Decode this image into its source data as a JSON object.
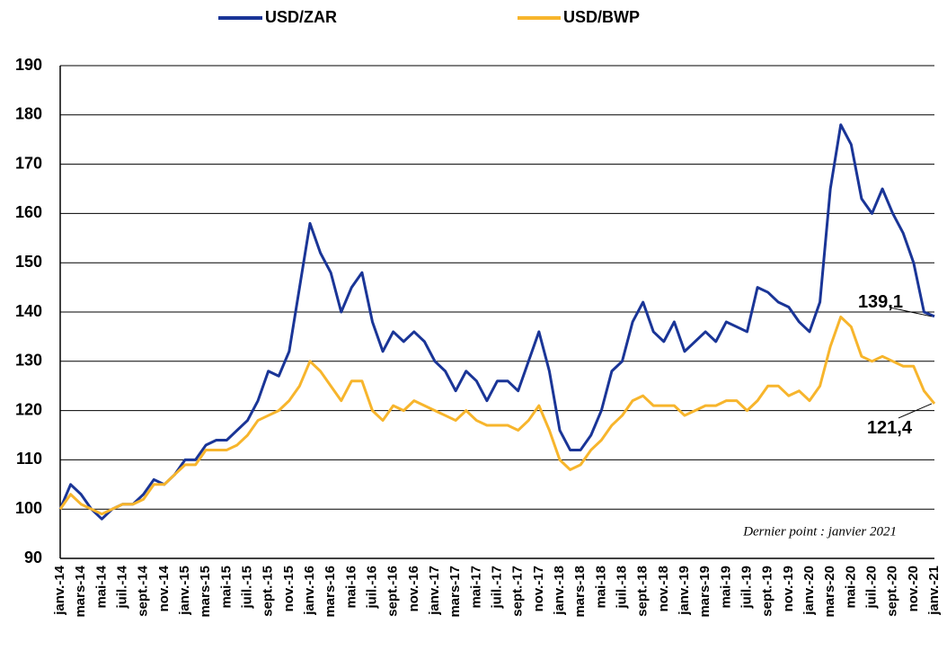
{
  "chart_data": {
    "type": "line",
    "categories": [
      "janv.-14",
      null,
      "mars-14",
      null,
      "mai-14",
      null,
      "juil.-14",
      null,
      "sept.-14",
      null,
      "nov.-14",
      null,
      "janv.-15",
      null,
      "mars-15",
      null,
      "mai-15",
      null,
      "juil.-15",
      null,
      "sept.-15",
      null,
      "nov.-15",
      null,
      "janv.-16",
      null,
      "mars-16",
      null,
      "mai-16",
      null,
      "juil.-16",
      null,
      "sept.-16",
      null,
      "nov.-16",
      null,
      "janv.-17",
      null,
      "mars-17",
      null,
      "mai-17",
      null,
      "juil.-17",
      null,
      "sept.-17",
      null,
      "nov.-17",
      null,
      "janv.-18",
      null,
      "mars-18",
      null,
      "mai-18",
      null,
      "juil.-18",
      null,
      "sept.-18",
      null,
      "nov.-18",
      null,
      "janv.-19",
      null,
      "mars-19",
      null,
      "mai-19",
      null,
      "juil.-19",
      null,
      "sept.-19",
      null,
      "nov.-19",
      null,
      "janv.-20",
      null,
      "mars-20",
      null,
      "mai-20",
      null,
      "juil.-20",
      null,
      "sept.-20",
      null,
      "nov.-20",
      null,
      "janv.-21"
    ],
    "series": [
      {
        "name": "USD/ZAR",
        "color": "#1a3597",
        "values": [
          100,
          105,
          103,
          100,
          98,
          100,
          101,
          101,
          103,
          106,
          105,
          107,
          110,
          110,
          113,
          114,
          114,
          116,
          118,
          122,
          128,
          127,
          132,
          145,
          158,
          152,
          148,
          140,
          145,
          148,
          138,
          132,
          136,
          134,
          136,
          134,
          130,
          128,
          124,
          128,
          126,
          122,
          126,
          126,
          124,
          130,
          136,
          128,
          116,
          112,
          112,
          115,
          120,
          128,
          130,
          138,
          142,
          136,
          134,
          138,
          132,
          134,
          136,
          134,
          138,
          137,
          136,
          145,
          144,
          142,
          141,
          138,
          136,
          142,
          165,
          178,
          174,
          163,
          160,
          165,
          160,
          156,
          150,
          140,
          139.1
        ],
        "value_labels": [
          null,
          null,
          null,
          null,
          null,
          null,
          null,
          null,
          null,
          null,
          null,
          null,
          null,
          null,
          null,
          null,
          null,
          null,
          null,
          null,
          null,
          null,
          null,
          null,
          null,
          null,
          null,
          null,
          null,
          null,
          null,
          null,
          null,
          null,
          null,
          null,
          null,
          null,
          null,
          null,
          null,
          null,
          null,
          null,
          null,
          null,
          null,
          null,
          null,
          null,
          null,
          null,
          null,
          null,
          null,
          null,
          null,
          null,
          null,
          null,
          null,
          null,
          null,
          null,
          null,
          null,
          null,
          null,
          null,
          null,
          null,
          null,
          null,
          null,
          null,
          null,
          null,
          null,
          null,
          null,
          null,
          null,
          null,
          null,
          "139,1"
        ]
      },
      {
        "name": "USD/BWP",
        "color": "#f7b52c",
        "values": [
          100,
          103,
          101,
          100,
          99,
          100,
          101,
          101,
          102,
          105,
          105,
          107,
          109,
          109,
          112,
          112,
          112,
          113,
          115,
          118,
          119,
          120,
          122,
          125,
          130,
          128,
          125,
          122,
          126,
          126,
          120,
          118,
          121,
          120,
          122,
          121,
          120,
          119,
          118,
          120,
          118,
          117,
          117,
          117,
          116,
          118,
          121,
          116,
          110,
          108,
          109,
          112,
          114,
          117,
          119,
          122,
          123,
          121,
          121,
          121,
          119,
          120,
          121,
          121,
          122,
          122,
          120,
          122,
          125,
          125,
          123,
          124,
          122,
          125,
          133,
          139,
          137,
          131,
          130,
          131,
          130,
          129,
          129,
          124,
          121.4
        ],
        "value_labels": [
          null,
          null,
          null,
          null,
          null,
          null,
          null,
          null,
          null,
          null,
          null,
          null,
          null,
          null,
          null,
          null,
          null,
          null,
          null,
          null,
          null,
          null,
          null,
          null,
          null,
          null,
          null,
          null,
          null,
          null,
          null,
          null,
          null,
          null,
          null,
          null,
          null,
          null,
          null,
          null,
          null,
          null,
          null,
          null,
          null,
          null,
          null,
          null,
          null,
          null,
          null,
          null,
          null,
          null,
          null,
          null,
          null,
          null,
          null,
          null,
          null,
          null,
          null,
          null,
          null,
          null,
          null,
          null,
          null,
          null,
          null,
          null,
          null,
          null,
          null,
          null,
          null,
          null,
          null,
          null,
          null,
          null,
          null,
          null,
          "121,4"
        ]
      }
    ],
    "note": "Dernier point : janvier 2021",
    "ylim": [
      90,
      190
    ],
    "yticks": [
      90,
      100,
      110,
      120,
      130,
      140,
      150,
      160,
      170,
      180,
      190
    ],
    "grid": true,
    "legend": "top"
  }
}
